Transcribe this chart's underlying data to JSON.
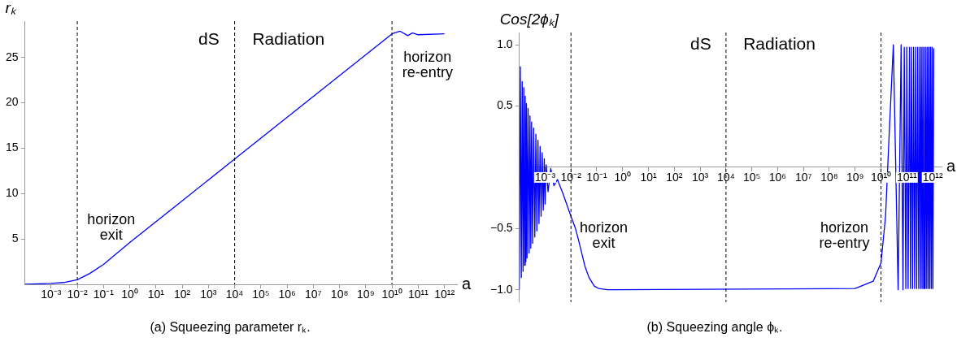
{
  "chart_data": [
    {
      "type": "line",
      "title": "(a) Squeezing parameter rₖ.",
      "xlabel": "a",
      "ylabel": "rₖ",
      "log": "x",
      "grid": false,
      "legend": false,
      "marker": "none",
      "line_style": "solid",
      "xlim": [
        0.0001,
        3000000000000.0
      ],
      "ylim": [
        0,
        29
      ],
      "xticks": [
        {
          "value": 0.001,
          "label": "10⁻³"
        },
        {
          "value": 0.01,
          "label": "10⁻²"
        },
        {
          "value": 0.1,
          "label": "10⁻¹"
        },
        {
          "value": 1,
          "label": "10⁰"
        },
        {
          "value": 10,
          "label": "10¹"
        },
        {
          "value": 100,
          "label": "10²"
        },
        {
          "value": 1000,
          "label": "10³"
        },
        {
          "value": 10000,
          "label": "10⁴"
        },
        {
          "value": 100000,
          "label": "10⁵"
        },
        {
          "value": 1000000,
          "label": "10⁶"
        },
        {
          "value": 10000000,
          "label": "10⁷"
        },
        {
          "value": 100000000,
          "label": "10⁸"
        },
        {
          "value": 1000000000,
          "label": "10⁹"
        },
        {
          "value": 10000000000,
          "label": "10¹⁰"
        },
        {
          "value": 100000000000,
          "label": "10¹¹"
        },
        {
          "value": 1000000000000,
          "label": "10¹²"
        }
      ],
      "yticks": [
        5,
        10,
        15,
        20,
        25
      ],
      "series": [
        {
          "color": "#0000ff",
          "x": [
            0.0001,
            0.001,
            0.003,
            0.01,
            0.03,
            0.1,
            1,
            10000,
            10000000000,
            20000000000,
            40000000000,
            60000000000,
            100000000000,
            1000000000000
          ],
          "values": [
            0,
            0.1,
            0.2,
            0.5,
            1.2,
            2.2,
            4.6,
            13.8,
            27.6,
            27.9,
            27.4,
            27.7,
            27.5,
            27.6
          ]
        }
      ],
      "ref_lines": [
        {
          "axis": "x",
          "value": 0.01,
          "color": "#000000",
          "line_style": "dashed"
        },
        {
          "axis": "x",
          "value": 10000,
          "color": "#000000",
          "line_style": "dashed"
        },
        {
          "axis": "x",
          "value": 10000000000,
          "color": "#000000",
          "line_style": "dashed"
        }
      ],
      "annotations": [
        "horizon exit",
        "dS",
        "Radiation",
        "horizon re-entry"
      ]
    },
    {
      "type": "line",
      "title": "(b) Squeezing angle ϕₖ.",
      "xlabel": "a",
      "ylabel": "Cos[2ϕₖ]",
      "log": "x",
      "grid": false,
      "legend": false,
      "marker": "none",
      "line_style": "solid",
      "xlim": [
        0.0001,
        2200000000000.0
      ],
      "ylim": [
        -1.1,
        1.1
      ],
      "xticks": [
        {
          "value": 0.001,
          "label": "10⁻³"
        },
        {
          "value": 0.01,
          "label": "10⁻²"
        },
        {
          "value": 0.1,
          "label": "10⁻¹"
        },
        {
          "value": 1,
          "label": "10⁰"
        },
        {
          "value": 10,
          "label": "10¹"
        },
        {
          "value": 100,
          "label": "10²"
        },
        {
          "value": 1000,
          "label": "10³"
        },
        {
          "value": 10000,
          "label": "10⁴"
        },
        {
          "value": 100000,
          "label": "10⁵"
        },
        {
          "value": 1000000,
          "label": "10⁶"
        },
        {
          "value": 10000000,
          "label": "10⁷"
        },
        {
          "value": 100000000,
          "label": "10⁸"
        },
        {
          "value": 1000000000,
          "label": "10⁹"
        },
        {
          "value": 10000000000,
          "label": "10¹⁰"
        },
        {
          "value": 100000000000,
          "label": "10¹¹"
        },
        {
          "value": 1000000000000,
          "label": "10¹²"
        }
      ],
      "yticks": [
        {
          "value": -1,
          "label": "−1.0"
        },
        {
          "value": -0.5,
          "label": "−0.5"
        },
        {
          "value": 0.5,
          "label": "0.5"
        },
        {
          "value": 1,
          "label": "1.0"
        }
      ],
      "series": [
        {
          "color": "#0000ff",
          "x": [
            0.0001,
            0.00011,
            0.00012,
            0.00013,
            0.00014,
            0.00015,
            0.00016,
            0.00017,
            0.00018,
            0.00019,
            0.0002,
            0.00022,
            0.00024,
            0.00026,
            0.00028,
            0.0003,
            0.00033,
            0.00036,
            0.0004,
            0.00044,
            0.00048,
            0.00053,
            0.00058,
            0.00064,
            0.0007,
            0.00077,
            0.00085,
            0.00093,
            0.001,
            0.0011,
            0.0013,
            0.00166,
            0.0022,
            0.003,
            0.005,
            0.01,
            0.015,
            0.02,
            0.035,
            0.05,
            0.08,
            0.12,
            0.25,
            1000000000,
            5000000000,
            10000000000,
            15000000000,
            20000000000,
            30000000000,
            46000000000,
            60000000000,
            70800000000,
            79400000000,
            91200000000,
            100000000000,
            112000000000,
            126000000000,
            138000000000,
            151000000000,
            166000000000,
            182000000000,
            200000000000,
            219000000000,
            240000000000,
            263000000000,
            288000000000,
            316000000000,
            339000000000,
            363000000000,
            389000000000,
            417000000000,
            447000000000,
            479000000000,
            513000000000,
            550000000000,
            589000000000,
            631000000000,
            676000000000,
            724000000000,
            776000000000,
            832000000000,
            891000000000,
            955000000000,
            1020000000000,
            1100000000000
          ],
          "values": [
            -1.0,
            0.82,
            -0.9,
            0.7,
            -0.85,
            0.65,
            -0.8,
            0.58,
            -0.77,
            0.52,
            -0.74,
            0.48,
            -0.7,
            0.42,
            -0.66,
            0.37,
            -0.62,
            0.32,
            -0.57,
            0.27,
            -0.52,
            0.22,
            -0.46,
            0.17,
            -0.4,
            0.12,
            -0.35,
            0.07,
            -0.3,
            0.02,
            -0.2,
            -0.01,
            -0.15,
            -0.1,
            -0.22,
            -0.4,
            -0.5,
            -0.6,
            -0.81,
            -0.9,
            -0.97,
            -0.99,
            -1.0,
            -0.99,
            -0.93,
            -0.78,
            -0.4,
            0.2,
            1.0,
            -1.0,
            1.0,
            -1.0,
            0.98,
            -0.99,
            0.98,
            -0.99,
            0.98,
            -0.99,
            0.98,
            -0.99,
            0.98,
            -0.99,
            0.98,
            -0.99,
            0.98,
            -0.99,
            0.98,
            -0.99,
            0.98,
            -0.99,
            0.98,
            -0.99,
            0.98,
            -0.99,
            0.98,
            -0.99,
            0.98,
            -0.99,
            0.98,
            -0.99,
            0.98,
            -0.99,
            0.98,
            -0.99,
            0.97
          ]
        }
      ],
      "ref_lines": [
        {
          "axis": "x",
          "value": 0.01,
          "color": "#000000",
          "line_style": "dashed"
        },
        {
          "axis": "x",
          "value": 10000,
          "color": "#000000",
          "line_style": "dashed"
        },
        {
          "axis": "x",
          "value": 10000000000,
          "color": "#000000",
          "line_style": "dashed"
        }
      ],
      "annotations": [
        "horizon exit",
        "dS",
        "Radiation",
        "horizon re-entry"
      ]
    }
  ]
}
